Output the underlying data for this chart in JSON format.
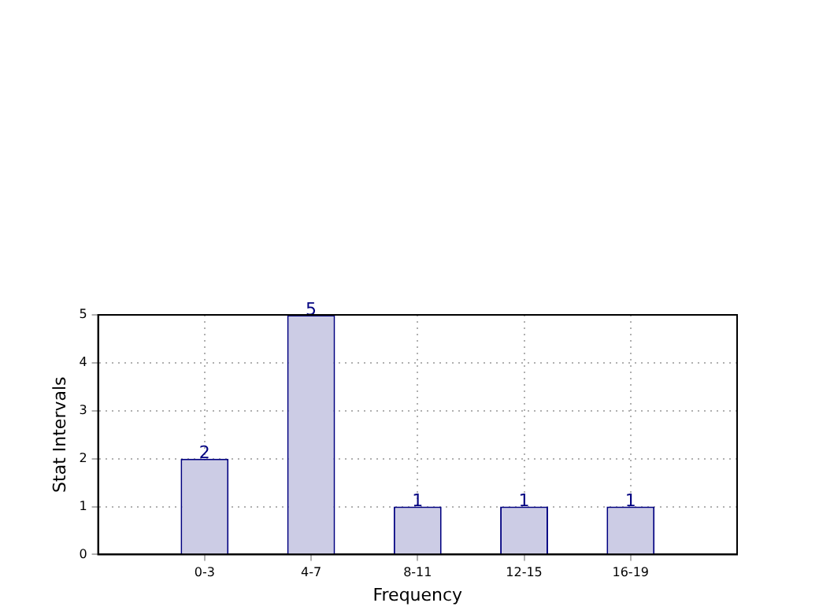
{
  "chart_data": {
    "type": "bar",
    "xlabel": "Frequency",
    "ylabel": "Stat Intervals",
    "categories": [
      "0-3",
      "4-7",
      "8-11",
      "12-15",
      "16-19"
    ],
    "values": [
      2,
      5,
      1,
      1,
      1
    ],
    "color": "#cccce5",
    "ylim": [
      0,
      5
    ],
    "yticks": [
      0,
      1,
      2,
      3,
      4,
      5
    ],
    "grid": true,
    "data_labels": true
  }
}
